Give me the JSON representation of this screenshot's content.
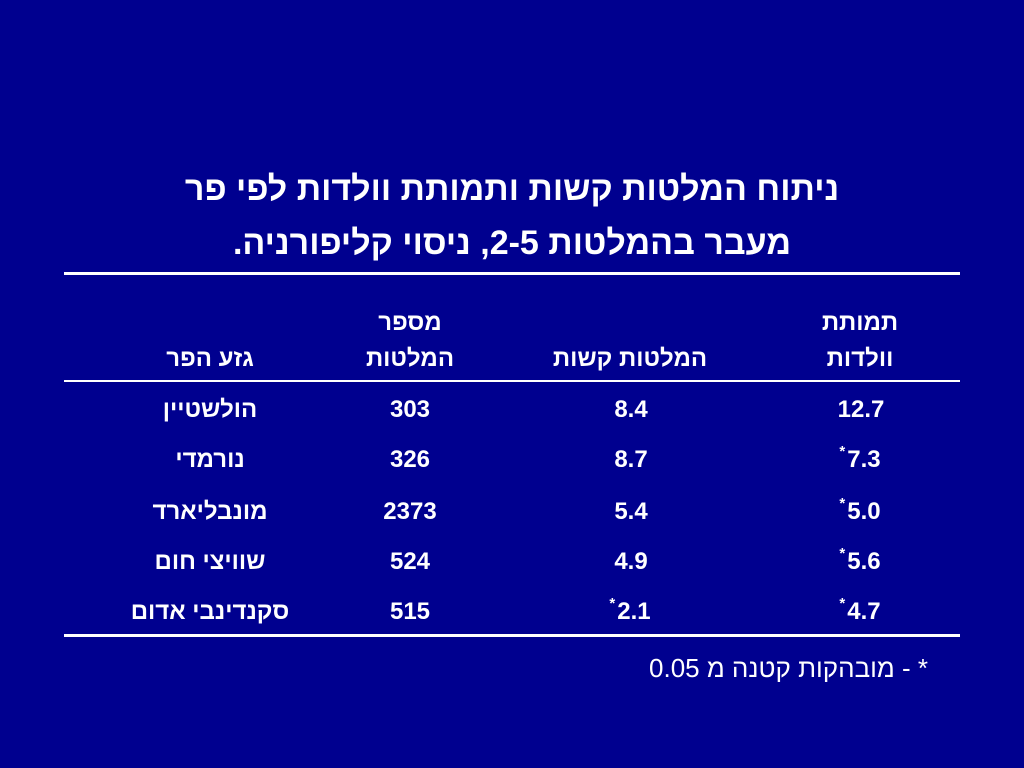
{
  "slide": {
    "title_line1": "ניתוח המלטות קשות ותמותת וולדות לפי פר",
    "title_line2": "מעבר בהמלטות 2-5, ניסוי קליפורניה.",
    "table": {
      "headers": {
        "breed": "גזע הפר",
        "births_count_l1": "מספר",
        "births_count_l2": "המלטות",
        "hard_births": "המלטות קשות",
        "mortality_l1": "תמותת",
        "mortality_l2": "וולדות"
      },
      "rows": [
        {
          "breed": "הולשטיין",
          "births": "303",
          "hard": "8.4",
          "hard_star": "",
          "mortality": "12.7",
          "mortality_star": ""
        },
        {
          "breed": "נורמדי",
          "births": "326",
          "hard": "8.7",
          "hard_star": "",
          "mortality": "7.3",
          "mortality_star": "*"
        },
        {
          "breed": "מונבליארד",
          "births": "2373",
          "hard": "5.4",
          "hard_star": "",
          "mortality": "5.0",
          "mortality_star": "*"
        },
        {
          "breed": "שוויצי חום",
          "births": "524",
          "hard": "4.9",
          "hard_star": "",
          "mortality": "5.6",
          "mortality_star": "*"
        },
        {
          "breed": "סקנדינבי אדום",
          "births": "515",
          "hard": "2.1",
          "hard_star": "*",
          "mortality": "4.7",
          "mortality_star": "*"
        }
      ]
    },
    "footnote": "* - מובהקות קטנה מ 0.05"
  },
  "colors": {
    "background": "#00008f",
    "text": "#ffffff"
  }
}
